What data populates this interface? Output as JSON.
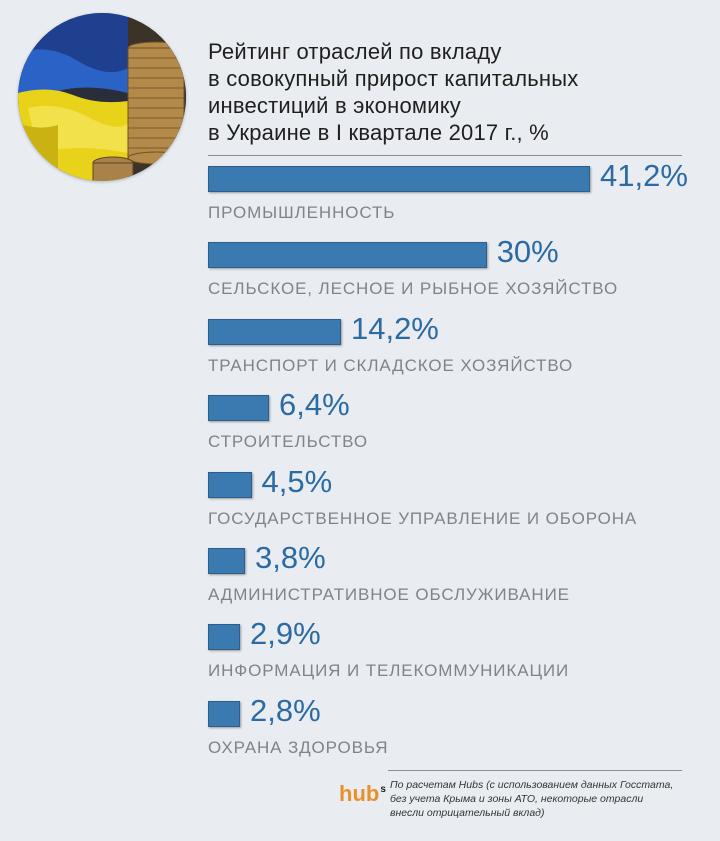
{
  "title_lines": [
    "Рейтинг отраслей по вкладу",
    "в совокупный прирост капитальных",
    "инвестиций в экономику",
    "в Украине в I квартале 2017 г., %"
  ],
  "colors": {
    "bar": "#3a7ab0",
    "value_text": "#2c6aa4",
    "label_text": "#7f8489",
    "background": "#e9edf1",
    "logo": "#e8912a"
  },
  "chart_data": {
    "type": "bar",
    "orientation": "horizontal",
    "categories": [
      "ПРОМЫШЛЕННОСТЬ",
      "СЕЛЬСКОЕ, ЛЕСНОЕ И РЫБНОЕ ХОЗЯЙСТВО",
      "ТРАНСПОРТ И СКЛАДСКОЕ ХОЗЯЙСТВО",
      "СТРОИТЕЛЬСТВО",
      "ГОСУДАРСТВЕННОЕ УПРАВЛЕНИЕ И ОБОРОНА",
      "АДМИНИСТРАТИВНОЕ ОБСЛУЖИВАНИЕ",
      "ИНФОРМАЦИЯ И ТЕЛЕКОММУНИКАЦИИ",
      "ОХРАНА ЗДОРОВЬЯ"
    ],
    "values": [
      41.2,
      30,
      14.2,
      6.4,
      4.5,
      3.8,
      2.9,
      2.8
    ],
    "value_labels": [
      "41,2%",
      "30%",
      "14,2%",
      "6,4%",
      "4,5%",
      "3,8%",
      "2,9%",
      "2,8%"
    ],
    "grid": false,
    "legend": "none"
  },
  "footer": {
    "logo_text": "hub",
    "logo_sup": "s",
    "note_lines": [
      "По расчетам Hubs (с использованием данных Госстата,",
      "без учета Крыма и зоны АТО, некоторые отрасли",
      "внесли отрицательный вклад)"
    ]
  },
  "image": {
    "icon": "ukraine-flag-coins-photo"
  }
}
